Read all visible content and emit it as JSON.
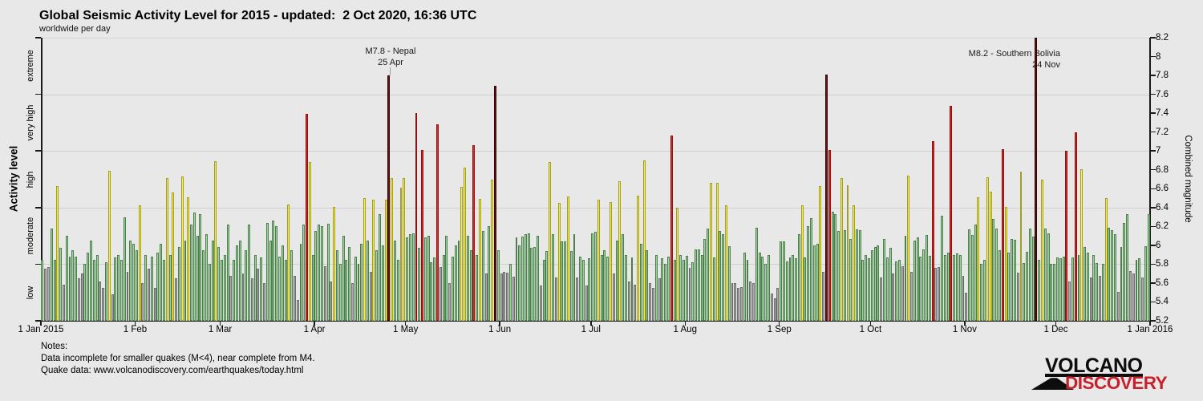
{
  "header": {
    "title": "Global Seismic Activity Level for 2015 - updated:  2 Oct 2020, 16:36 UTC",
    "subtitle": "worldwide per day"
  },
  "left_axis": {
    "title": "Activity level",
    "bands": [
      "low",
      "moderate",
      "high",
      "very high",
      "extreme"
    ]
  },
  "right_axis": {
    "title": "Combined magnitude",
    "min": 5.2,
    "max": 8.2,
    "step": 0.2
  },
  "x_axis": {
    "labels": [
      "1 Jan 2015",
      "1 Feb",
      "1 Mar",
      "1 Apr",
      "1 May",
      "1 Jun",
      "1 Jul",
      "1 Aug",
      "1 Sep",
      "1 Oct",
      "1 Nov",
      "1 Dec",
      "1 Jan 2016"
    ],
    "month_day_offsets": [
      0,
      31,
      59,
      90,
      120,
      151,
      181,
      212,
      243,
      273,
      304,
      334,
      365
    ]
  },
  "levels": {
    "thresholds": [
      5.8,
      6.4,
      7.0,
      7.6
    ],
    "names": [
      "low",
      "moderate",
      "high",
      "very_high",
      "extreme"
    ],
    "colors": {
      "low": {
        "fill": "#ababab",
        "stroke": "#6e6e6e"
      },
      "moderate": {
        "fill": "#9bd49b",
        "stroke": "#4e7d4e"
      },
      "high": {
        "fill": "#fdef35",
        "stroke": "#9f9f2a"
      },
      "very_high": {
        "fill": "#e32421",
        "stroke": "#8c1313"
      },
      "extreme": {
        "fill": "#6d0f12",
        "stroke": "#2f0506"
      }
    }
  },
  "annotations": [
    {
      "line1": "M7.8 - Nepal",
      "line2": "25 Apr",
      "day": 115
    },
    {
      "line1": "M8.2 - Southern Bolivia",
      "line2": "24 Nov",
      "day": 328
    }
  ],
  "notes": {
    "heading": "Notes:",
    "line1": "Data incomplete for smaller quakes (M<4), near complete from M4.",
    "line2": "Quake data: www.volcanodiscovery.com/earthquakes/today.html"
  },
  "logo": {
    "line1": "VOLCANO",
    "line2": "DISCOVERY",
    "accent": "#c8202a"
  },
  "chart_data": {
    "type": "bar",
    "title": "Global Seismic Activity Level for 2015",
    "xlabel": "",
    "ylabel": "Combined magnitude",
    "ylim": [
      5.2,
      8.2
    ],
    "gridlines": [
      5.8,
      6.4,
      7.0,
      7.6
    ],
    "legend": "none",
    "x_start": "1 Jan 2015",
    "x_unit": "day",
    "values": [
      5.85,
      5.75,
      5.77,
      6.18,
      5.85,
      6.63,
      5.97,
      5.58,
      6.1,
      5.88,
      5.95,
      5.88,
      5.65,
      5.7,
      5.8,
      5.92,
      6.05,
      5.85,
      5.9,
      5.62,
      5.55,
      5.82,
      6.79,
      5.48,
      5.87,
      5.9,
      5.85,
      6.3,
      5.72,
      6.05,
      6.02,
      5.95,
      6.42,
      5.6,
      5.9,
      5.75,
      5.88,
      5.55,
      5.92,
      6.02,
      5.85,
      6.71,
      5.9,
      6.56,
      5.65,
      5.98,
      6.73,
      6.05,
      6.51,
      6.22,
      6.35,
      6.1,
      6.33,
      5.95,
      6.12,
      5.8,
      6.05,
      6.89,
      5.98,
      5.85,
      5.9,
      6.22,
      5.68,
      5.85,
      6.0,
      6.05,
      5.7,
      5.95,
      6.22,
      5.65,
      5.9,
      5.75,
      5.87,
      5.6,
      6.24,
      6.05,
      6.26,
      6.2,
      5.88,
      6.0,
      5.85,
      6.43,
      5.95,
      5.68,
      5.42,
      6.02,
      6.22,
      7.39,
      6.88,
      5.9,
      6.15,
      6.22,
      6.2,
      5.78,
      6.23,
      5.62,
      6.41,
      5.95,
      5.8,
      6.1,
      5.85,
      5.98,
      5.6,
      5.88,
      5.8,
      6.02,
      6.5,
      6.05,
      5.72,
      6.48,
      5.95,
      6.33,
      6.0,
      6.48,
      7.8,
      6.71,
      6.05,
      5.85,
      6.61,
      6.71,
      6.08,
      6.12,
      6.13,
      7.4,
      5.97,
      7.01,
      6.08,
      6.1,
      5.82,
      5.87,
      7.28,
      5.77,
      5.9,
      6.1,
      5.6,
      5.88,
      6.0,
      6.05,
      6.62,
      6.82,
      6.1,
      5.95,
      7.06,
      5.9,
      6.49,
      6.15,
      5.7,
      6.2,
      6.7,
      7.69,
      5.95,
      5.7,
      5.72,
      5.71,
      5.8,
      5.67,
      6.08,
      6.0,
      6.09,
      6.12,
      6.13,
      5.97,
      5.98,
      6.1,
      5.57,
      5.85,
      5.94,
      6.88,
      6.12,
      5.66,
      6.45,
      6.04,
      6.04,
      6.52,
      5.94,
      6.12,
      5.66,
      5.88,
      5.85,
      5.57,
      5.86,
      6.13,
      6.14,
      6.48,
      5.9,
      5.95,
      5.88,
      6.46,
      5.7,
      6.05,
      6.68,
      6.12,
      5.9,
      5.62,
      5.87,
      5.58,
      6.53,
      6.02,
      6.9,
      5.95,
      5.6,
      5.55,
      5.9,
      5.65,
      5.86,
      5.8,
      5.88,
      7.16,
      5.85,
      6.4,
      5.9,
      5.85,
      5.89,
      5.76,
      5.82,
      5.96,
      5.96,
      5.9,
      6.07,
      6.18,
      6.66,
      5.87,
      6.66,
      6.15,
      6.12,
      6.42,
      5.99,
      5.6,
      5.6,
      5.55,
      5.56,
      5.92,
      5.85,
      5.62,
      5.6,
      6.19,
      5.92,
      5.88,
      5.8,
      5.9,
      5.49,
      5.44,
      5.55,
      6.04,
      6.04,
      5.83,
      5.87,
      5.9,
      5.86,
      6.12,
      6.42,
      5.87,
      6.2,
      6.29,
      6.0,
      6.02,
      6.63,
      5.72,
      7.81,
      7.01,
      6.36,
      6.33,
      6.15,
      6.71,
      6.16,
      6.64,
      6.07,
      6.42,
      6.17,
      6.16,
      5.85,
      5.9,
      5.86,
      5.95,
      5.98,
      6.0,
      5.66,
      6.07,
      5.87,
      5.97,
      5.7,
      5.83,
      5.85,
      5.78,
      6.1,
      6.74,
      5.72,
      6.05,
      6.08,
      5.88,
      5.96,
      6.11,
      5.89,
      7.1,
      5.76,
      5.77,
      6.31,
      5.9,
      5.92,
      7.48,
      5.9,
      5.91,
      5.9,
      5.68,
      5.5,
      6.17,
      6.11,
      6.22,
      6.51,
      5.8,
      5.85,
      6.72,
      6.57,
      6.28,
      6.18,
      5.95,
      7.02,
      6.41,
      5.92,
      6.07,
      6.06,
      5.71,
      6.78,
      5.81,
      5.93,
      6.18,
      6.09,
      8.2,
      5.85,
      6.7,
      6.18,
      6.13,
      5.8,
      5.8,
      5.87,
      5.86,
      5.88,
      7.0,
      5.62,
      5.87,
      7.2,
      5.9,
      6.81,
      5.98,
      5.92,
      5.66,
      5.9,
      5.81,
      5.68,
      5.8,
      6.5,
      6.19,
      6.16,
      6.12,
      5.51,
      5.98,
      6.24,
      6.33,
      5.73,
      5.7,
      5.85,
      5.86,
      5.66,
      5.99,
      6.33
    ]
  }
}
